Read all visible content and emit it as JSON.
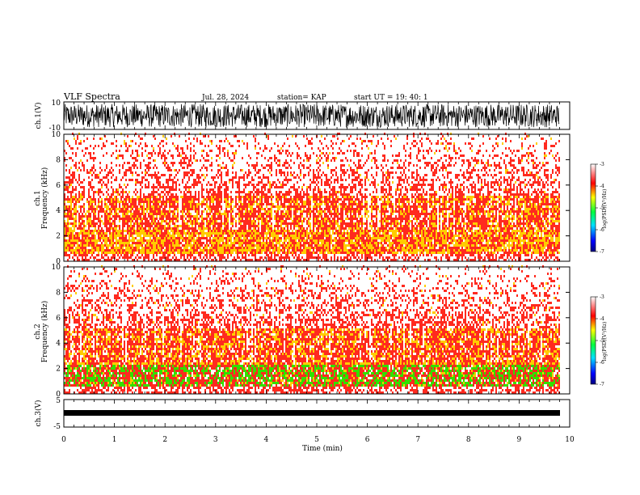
{
  "header": {
    "title": "VLF Spectra",
    "date": "Jul. 28, 2024",
    "station": "station= KAP",
    "start": "start UT =   19: 40: 1"
  },
  "chart_data": [
    {
      "type": "line",
      "name": "ch1-waveform",
      "ylabel": "ch.1(V)",
      "ylim": [
        -10,
        10
      ],
      "yticks": [
        "10",
        "-10"
      ],
      "xlim": [
        0,
        10
      ]
    },
    {
      "type": "heatmap",
      "name": "ch1-spectrogram",
      "ylabel": "ch.1\nFrequency (kHz)",
      "ylabel_top": "ch.1",
      "ylabel_bottom": "Frequency (kHz)",
      "ylim": [
        0,
        10
      ],
      "yticks": [
        "0",
        "2",
        "4",
        "6",
        "8",
        "10"
      ],
      "xlim": [
        0,
        9.8
      ],
      "colorbar": {
        "label": "log(PSD)(V²/Hz)",
        "range": [
          -7,
          -3
        ],
        "ticks": [
          "-3",
          "-4",
          "-5",
          "-6",
          "-7"
        ]
      }
    },
    {
      "type": "heatmap",
      "name": "ch2-spectrogram",
      "ylabel_top": "ch.2",
      "ylabel_bottom": "Frequency (kHz)",
      "ylim": [
        0,
        10
      ],
      "yticks": [
        "0",
        "2",
        "4",
        "6",
        "8",
        "10"
      ],
      "xlim": [
        0,
        9.8
      ],
      "colorbar": {
        "label": "log(PSD)(V²/Hz)",
        "range": [
          -7,
          -3
        ],
        "ticks": [
          "-3",
          "-4",
          "-5",
          "-6",
          "-7"
        ]
      }
    },
    {
      "type": "line",
      "name": "ch3-waveform",
      "ylabel": "ch.3(V)",
      "ylim": [
        -5,
        5
      ],
      "yticks": [
        "5",
        "-5"
      ],
      "xlabel": "Time (min)",
      "xlim": [
        0,
        10
      ],
      "xticks": [
        "0",
        "1",
        "2",
        "3",
        "4",
        "5",
        "6",
        "7",
        "8",
        "9",
        "10"
      ]
    }
  ],
  "colors": {
    "spectrum_high": "#ff2a1f",
    "spectrum_mid": "#ffcc00",
    "spectrum_low": "#33e000",
    "trace": "#000000"
  }
}
